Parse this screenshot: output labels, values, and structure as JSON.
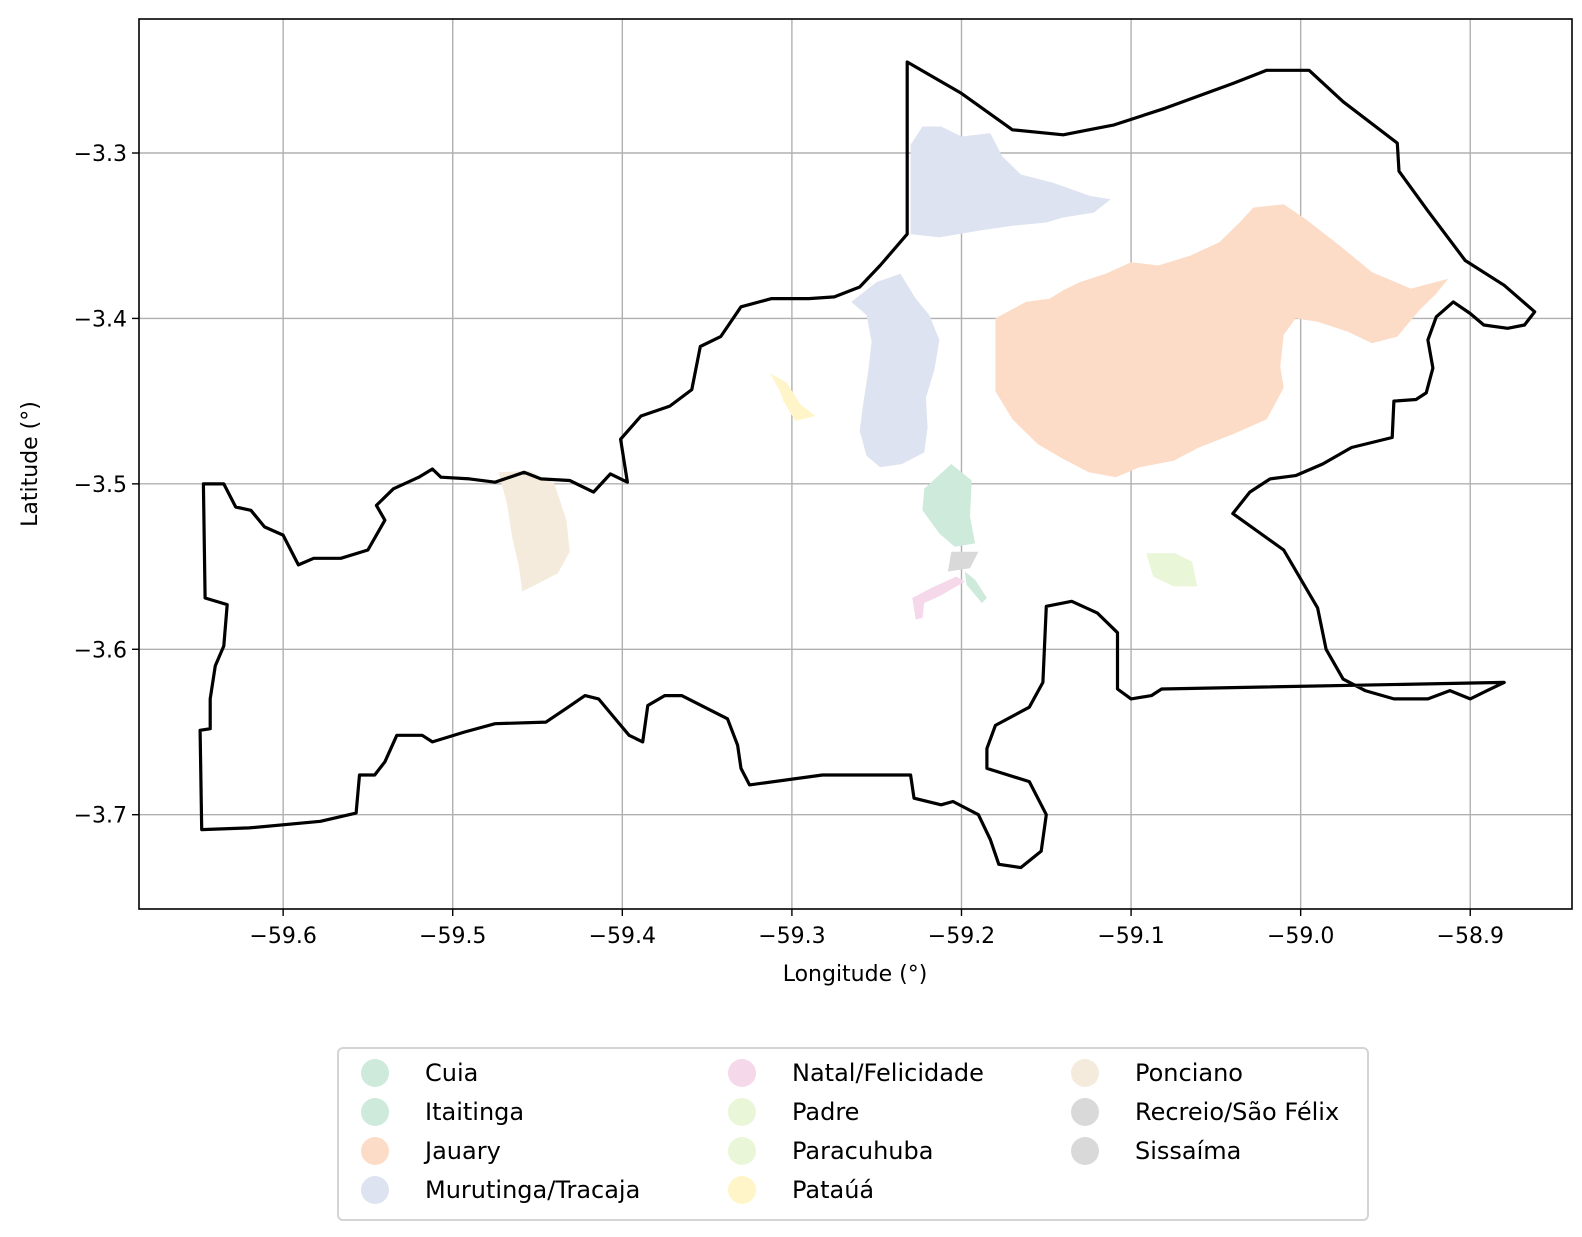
{
  "chart_data": {
    "type": "map",
    "xlabel": "Longitude (°)",
    "ylabel": "Latitude (°)",
    "xlim": [
      -59.685,
      -58.84
    ],
    "ylim": [
      -3.757,
      -3.219
    ],
    "x_ticks": [
      -59.6,
      -59.5,
      -59.4,
      -59.3,
      -59.2,
      -59.1,
      -59.0,
      -58.9
    ],
    "x_tick_labels": [
      "−59.6",
      "−59.5",
      "−59.4",
      "−59.3",
      "−59.2",
      "−59.1",
      "−59.0",
      "−58.9"
    ],
    "y_ticks": [
      -3.3,
      -3.4,
      -3.5,
      -3.6,
      -3.7
    ],
    "y_tick_labels": [
      "−3.3",
      "−3.4",
      "−3.5",
      "−3.6",
      "−3.7"
    ],
    "grid": true,
    "legend_position": "bottom-center",
    "boundary": {
      "color": "#000000",
      "coords": [
        [
          -59.647,
          -3.5
        ],
        [
          -59.635,
          -3.5
        ],
        [
          -59.628,
          -3.514
        ],
        [
          -59.619,
          -3.516
        ],
        [
          -59.611,
          -3.526
        ],
        [
          -59.6,
          -3.531
        ],
        [
          -59.591,
          -3.549
        ],
        [
          -59.582,
          -3.545
        ],
        [
          -59.566,
          -3.545
        ],
        [
          -59.55,
          -3.54
        ],
        [
          -59.54,
          -3.522
        ],
        [
          -59.545,
          -3.513
        ],
        [
          -59.535,
          -3.503
        ],
        [
          -59.52,
          -3.496
        ],
        [
          -59.512,
          -3.491
        ],
        [
          -59.507,
          -3.496
        ],
        [
          -59.49,
          -3.497
        ],
        [
          -59.475,
          -3.499
        ],
        [
          -59.458,
          -3.493
        ],
        [
          -59.448,
          -3.497
        ],
        [
          -59.431,
          -3.498
        ],
        [
          -59.417,
          -3.505
        ],
        [
          -59.407,
          -3.494
        ],
        [
          -59.397,
          -3.499
        ],
        [
          -59.401,
          -3.473
        ],
        [
          -59.389,
          -3.459
        ],
        [
          -59.372,
          -3.453
        ],
        [
          -59.359,
          -3.443
        ],
        [
          -59.354,
          -3.417
        ],
        [
          -59.342,
          -3.411
        ],
        [
          -59.33,
          -3.393
        ],
        [
          -59.312,
          -3.388
        ],
        [
          -59.29,
          -3.388
        ],
        [
          -59.275,
          -3.387
        ],
        [
          -59.26,
          -3.381
        ],
        [
          -59.248,
          -3.368
        ],
        [
          -59.232,
          -3.349
        ],
        [
          -59.232,
          -3.245
        ],
        [
          -59.2,
          -3.264
        ],
        [
          -59.17,
          -3.286
        ],
        [
          -59.14,
          -3.289
        ],
        [
          -59.11,
          -3.283
        ],
        [
          -59.08,
          -3.273
        ],
        [
          -59.04,
          -3.258
        ],
        [
          -59.02,
          -3.25
        ],
        [
          -58.995,
          -3.25
        ],
        [
          -58.975,
          -3.269
        ],
        [
          -58.943,
          -3.294
        ],
        [
          -58.942,
          -3.311
        ],
        [
          -58.925,
          -3.335
        ],
        [
          -58.903,
          -3.365
        ],
        [
          -58.88,
          -3.38
        ],
        [
          -58.862,
          -3.396
        ],
        [
          -58.868,
          -3.404
        ],
        [
          -58.878,
          -3.406
        ],
        [
          -58.892,
          -3.404
        ],
        [
          -58.9,
          -3.397
        ],
        [
          -58.91,
          -3.39
        ],
        [
          -58.92,
          -3.399
        ],
        [
          -58.925,
          -3.413
        ],
        [
          -58.922,
          -3.43
        ],
        [
          -58.926,
          -3.445
        ],
        [
          -58.932,
          -3.449
        ],
        [
          -58.945,
          -3.45
        ],
        [
          -58.946,
          -3.472
        ],
        [
          -58.97,
          -3.478
        ],
        [
          -58.987,
          -3.488
        ],
        [
          -59.003,
          -3.495
        ],
        [
          -59.018,
          -3.497
        ],
        [
          -59.03,
          -3.505
        ],
        [
          -59.04,
          -3.518
        ],
        [
          -59.01,
          -3.54
        ],
        [
          -58.99,
          -3.575
        ],
        [
          -58.985,
          -3.6
        ],
        [
          -58.975,
          -3.618
        ],
        [
          -58.962,
          -3.625
        ],
        [
          -58.945,
          -3.63
        ],
        [
          -58.925,
          -3.63
        ],
        [
          -58.912,
          -3.625
        ],
        [
          -58.9,
          -3.63
        ],
        [
          -58.89,
          -3.625
        ],
        [
          -58.88,
          -3.62
        ],
        [
          -59.082,
          -3.624
        ],
        [
          -59.088,
          -3.628
        ],
        [
          -59.1,
          -3.63
        ],
        [
          -59.108,
          -3.624
        ],
        [
          -59.108,
          -3.59
        ],
        [
          -59.12,
          -3.578
        ],
        [
          -59.135,
          -3.571
        ],
        [
          -59.15,
          -3.574
        ],
        [
          -59.152,
          -3.62
        ],
        [
          -59.16,
          -3.635
        ],
        [
          -59.18,
          -3.646
        ],
        [
          -59.185,
          -3.66
        ],
        [
          -59.185,
          -3.672
        ],
        [
          -59.16,
          -3.68
        ],
        [
          -59.15,
          -3.7
        ],
        [
          -59.153,
          -3.722
        ],
        [
          -59.165,
          -3.732
        ],
        [
          -59.178,
          -3.73
        ],
        [
          -59.183,
          -3.715
        ],
        [
          -59.19,
          -3.7
        ],
        [
          -59.205,
          -3.692
        ],
        [
          -59.212,
          -3.694
        ],
        [
          -59.228,
          -3.69
        ],
        [
          -59.23,
          -3.676
        ],
        [
          -59.282,
          -3.676
        ],
        [
          -59.325,
          -3.682
        ],
        [
          -59.33,
          -3.672
        ],
        [
          -59.332,
          -3.658
        ],
        [
          -59.338,
          -3.642
        ],
        [
          -59.365,
          -3.628
        ],
        [
          -59.375,
          -3.628
        ],
        [
          -59.385,
          -3.634
        ],
        [
          -59.388,
          -3.656
        ],
        [
          -59.396,
          -3.652
        ],
        [
          -59.405,
          -3.641
        ],
        [
          -59.414,
          -3.63
        ],
        [
          -59.422,
          -3.628
        ],
        [
          -59.432,
          -3.635
        ],
        [
          -59.445,
          -3.644
        ],
        [
          -59.475,
          -3.645
        ],
        [
          -59.493,
          -3.65
        ],
        [
          -59.512,
          -3.656
        ],
        [
          -59.518,
          -3.652
        ],
        [
          -59.533,
          -3.652
        ],
        [
          -59.54,
          -3.668
        ],
        [
          -59.546,
          -3.676
        ],
        [
          -59.555,
          -3.676
        ],
        [
          -59.557,
          -3.699
        ],
        [
          -59.578,
          -3.704
        ],
        [
          -59.62,
          -3.708
        ],
        [
          -59.648,
          -3.709
        ],
        [
          -59.649,
          -3.649
        ],
        [
          -59.643,
          -3.648
        ],
        [
          -59.643,
          -3.63
        ],
        [
          -59.64,
          -3.61
        ],
        [
          -59.635,
          -3.598
        ],
        [
          -59.633,
          -3.573
        ],
        [
          -59.646,
          -3.569
        ],
        [
          -59.647,
          -3.5
        ]
      ]
    },
    "regions": [
      {
        "name": "Murutinga/Tracaja",
        "color": "#dde3f0",
        "coords": [
          [
            -59.23,
            -3.295
          ],
          [
            -59.223,
            -3.284
          ],
          [
            -59.212,
            -3.284
          ],
          [
            -59.2,
            -3.29
          ],
          [
            -59.183,
            -3.288
          ],
          [
            -59.176,
            -3.302
          ],
          [
            -59.165,
            -3.313
          ],
          [
            -59.146,
            -3.318
          ],
          [
            -59.124,
            -3.326
          ],
          [
            -59.112,
            -3.328
          ],
          [
            -59.122,
            -3.336
          ],
          [
            -59.14,
            -3.339
          ],
          [
            -59.15,
            -3.342
          ],
          [
            -59.17,
            -3.344
          ],
          [
            -59.19,
            -3.347
          ],
          [
            -59.213,
            -3.351
          ],
          [
            -59.23,
            -3.349
          ]
        ]
      },
      {
        "name": "Murutinga/Tracaja",
        "color": "#dde3f0",
        "coords": [
          [
            -59.236,
            -3.373
          ],
          [
            -59.25,
            -3.378
          ],
          [
            -59.265,
            -3.39
          ],
          [
            -59.256,
            -3.398
          ],
          [
            -59.253,
            -3.414
          ],
          [
            -59.255,
            -3.432
          ],
          [
            -59.258,
            -3.452
          ],
          [
            -59.26,
            -3.468
          ],
          [
            -59.256,
            -3.483
          ],
          [
            -59.248,
            -3.49
          ],
          [
            -59.235,
            -3.488
          ],
          [
            -59.222,
            -3.481
          ],
          [
            -59.22,
            -3.466
          ],
          [
            -59.221,
            -3.448
          ],
          [
            -59.216,
            -3.431
          ],
          [
            -59.213,
            -3.413
          ],
          [
            -59.219,
            -3.398
          ],
          [
            -59.227,
            -3.388
          ]
        ]
      },
      {
        "name": "Jauary",
        "color": "#fcdcc7",
        "coords": [
          [
            -59.18,
            -3.4
          ],
          [
            -59.162,
            -3.39
          ],
          [
            -59.148,
            -3.388
          ],
          [
            -59.14,
            -3.383
          ],
          [
            -59.13,
            -3.378
          ],
          [
            -59.115,
            -3.373
          ],
          [
            -59.1,
            -3.366
          ],
          [
            -59.084,
            -3.368
          ],
          [
            -59.065,
            -3.362
          ],
          [
            -59.048,
            -3.354
          ],
          [
            -59.036,
            -3.342
          ],
          [
            -59.028,
            -3.333
          ],
          [
            -59.01,
            -3.331
          ],
          [
            -58.997,
            -3.34
          ],
          [
            -58.977,
            -3.356
          ],
          [
            -58.958,
            -3.372
          ],
          [
            -58.935,
            -3.382
          ],
          [
            -58.913,
            -3.376
          ],
          [
            -58.92,
            -3.385
          ],
          [
            -58.93,
            -3.395
          ],
          [
            -58.943,
            -3.411
          ],
          [
            -58.958,
            -3.415
          ],
          [
            -58.972,
            -3.408
          ],
          [
            -58.99,
            -3.402
          ],
          [
            -59.003,
            -3.4
          ],
          [
            -59.01,
            -3.41
          ],
          [
            -59.012,
            -3.429
          ],
          [
            -59.01,
            -3.442
          ],
          [
            -59.02,
            -3.461
          ],
          [
            -59.04,
            -3.47
          ],
          [
            -59.06,
            -3.478
          ],
          [
            -59.075,
            -3.486
          ],
          [
            -59.095,
            -3.49
          ],
          [
            -59.109,
            -3.496
          ],
          [
            -59.125,
            -3.493
          ],
          [
            -59.14,
            -3.485
          ],
          [
            -59.155,
            -3.476
          ],
          [
            -59.17,
            -3.461
          ],
          [
            -59.18,
            -3.444
          ],
          [
            -59.18,
            -3.423
          ]
        ]
      },
      {
        "name": "Pataúá",
        "color": "#fff5c8",
        "coords": [
          [
            -59.313,
            -3.433
          ],
          [
            -59.303,
            -3.439
          ],
          [
            -59.295,
            -3.452
          ],
          [
            -59.286,
            -3.459
          ],
          [
            -59.298,
            -3.462
          ],
          [
            -59.305,
            -3.45
          ],
          [
            -59.307,
            -3.444
          ]
        ]
      },
      {
        "name": "Ponciano",
        "color": "#f4ebdc",
        "coords": [
          [
            -59.473,
            -3.493
          ],
          [
            -59.455,
            -3.492
          ],
          [
            -59.44,
            -3.5
          ],
          [
            -59.433,
            -3.522
          ],
          [
            -59.431,
            -3.541
          ],
          [
            -59.438,
            -3.554
          ],
          [
            -59.451,
            -3.561
          ],
          [
            -59.459,
            -3.565
          ],
          [
            -59.461,
            -3.55
          ],
          [
            -59.465,
            -3.532
          ],
          [
            -59.468,
            -3.512
          ]
        ]
      },
      {
        "name": "Cuia",
        "color": "#cdeadb",
        "coords": [
          [
            -59.206,
            -3.488
          ],
          [
            -59.194,
            -3.498
          ],
          [
            -59.195,
            -3.52
          ],
          [
            -59.192,
            -3.536
          ],
          [
            -59.204,
            -3.538
          ],
          [
            -59.213,
            -3.53
          ],
          [
            -59.223,
            -3.516
          ],
          [
            -59.222,
            -3.503
          ]
        ]
      },
      {
        "name": "Itaitinga",
        "color": "#cdeadb",
        "coords": [
          [
            -59.198,
            -3.553
          ],
          [
            -59.192,
            -3.558
          ],
          [
            -59.185,
            -3.569
          ],
          [
            -59.188,
            -3.572
          ],
          [
            -59.197,
            -3.561
          ]
        ]
      },
      {
        "name": "Recreio/São Félix",
        "color": "#d9d9d9",
        "coords": [
          [
            -59.206,
            -3.541
          ],
          [
            -59.19,
            -3.541
          ],
          [
            -59.195,
            -3.551
          ],
          [
            -59.208,
            -3.553
          ]
        ]
      },
      {
        "name": "Natal/Felicidade",
        "color": "#f5d8ea",
        "coords": [
          [
            -59.227,
            -3.582
          ],
          [
            -59.229,
            -3.569
          ],
          [
            -59.218,
            -3.563
          ],
          [
            -59.203,
            -3.556
          ],
          [
            -59.198,
            -3.559
          ],
          [
            -59.213,
            -3.568
          ],
          [
            -59.222,
            -3.572
          ],
          [
            -59.223,
            -3.581
          ]
        ]
      },
      {
        "name": "Paracuhuba",
        "color": "#eaf6d8",
        "coords": [
          [
            -59.091,
            -3.542
          ],
          [
            -59.074,
            -3.542
          ],
          [
            -59.064,
            -3.547
          ],
          [
            -59.061,
            -3.562
          ],
          [
            -59.075,
            -3.562
          ],
          [
            -59.087,
            -3.556
          ]
        ]
      }
    ],
    "legend": [
      {
        "label": "Cuia",
        "color": "#cdeadb"
      },
      {
        "label": "Itaitinga",
        "color": "#cdeadb"
      },
      {
        "label": "Jauary",
        "color": "#fcdcc7"
      },
      {
        "label": "Murutinga/Tracaja",
        "color": "#dde3f0"
      },
      {
        "label": "Natal/Felicidade",
        "color": "#f5d8ea"
      },
      {
        "label": "Padre",
        "color": "#eaf6d8"
      },
      {
        "label": "Paracuhuba",
        "color": "#eaf6d8"
      },
      {
        "label": "Pataúá",
        "color": "#fff5c8"
      },
      {
        "label": "Ponciano",
        "color": "#f4ebdc"
      },
      {
        "label": "Recreio/São Félix",
        "color": "#d9d9d9"
      },
      {
        "label": "Sissaíma",
        "color": "#d9d9d9"
      }
    ]
  }
}
